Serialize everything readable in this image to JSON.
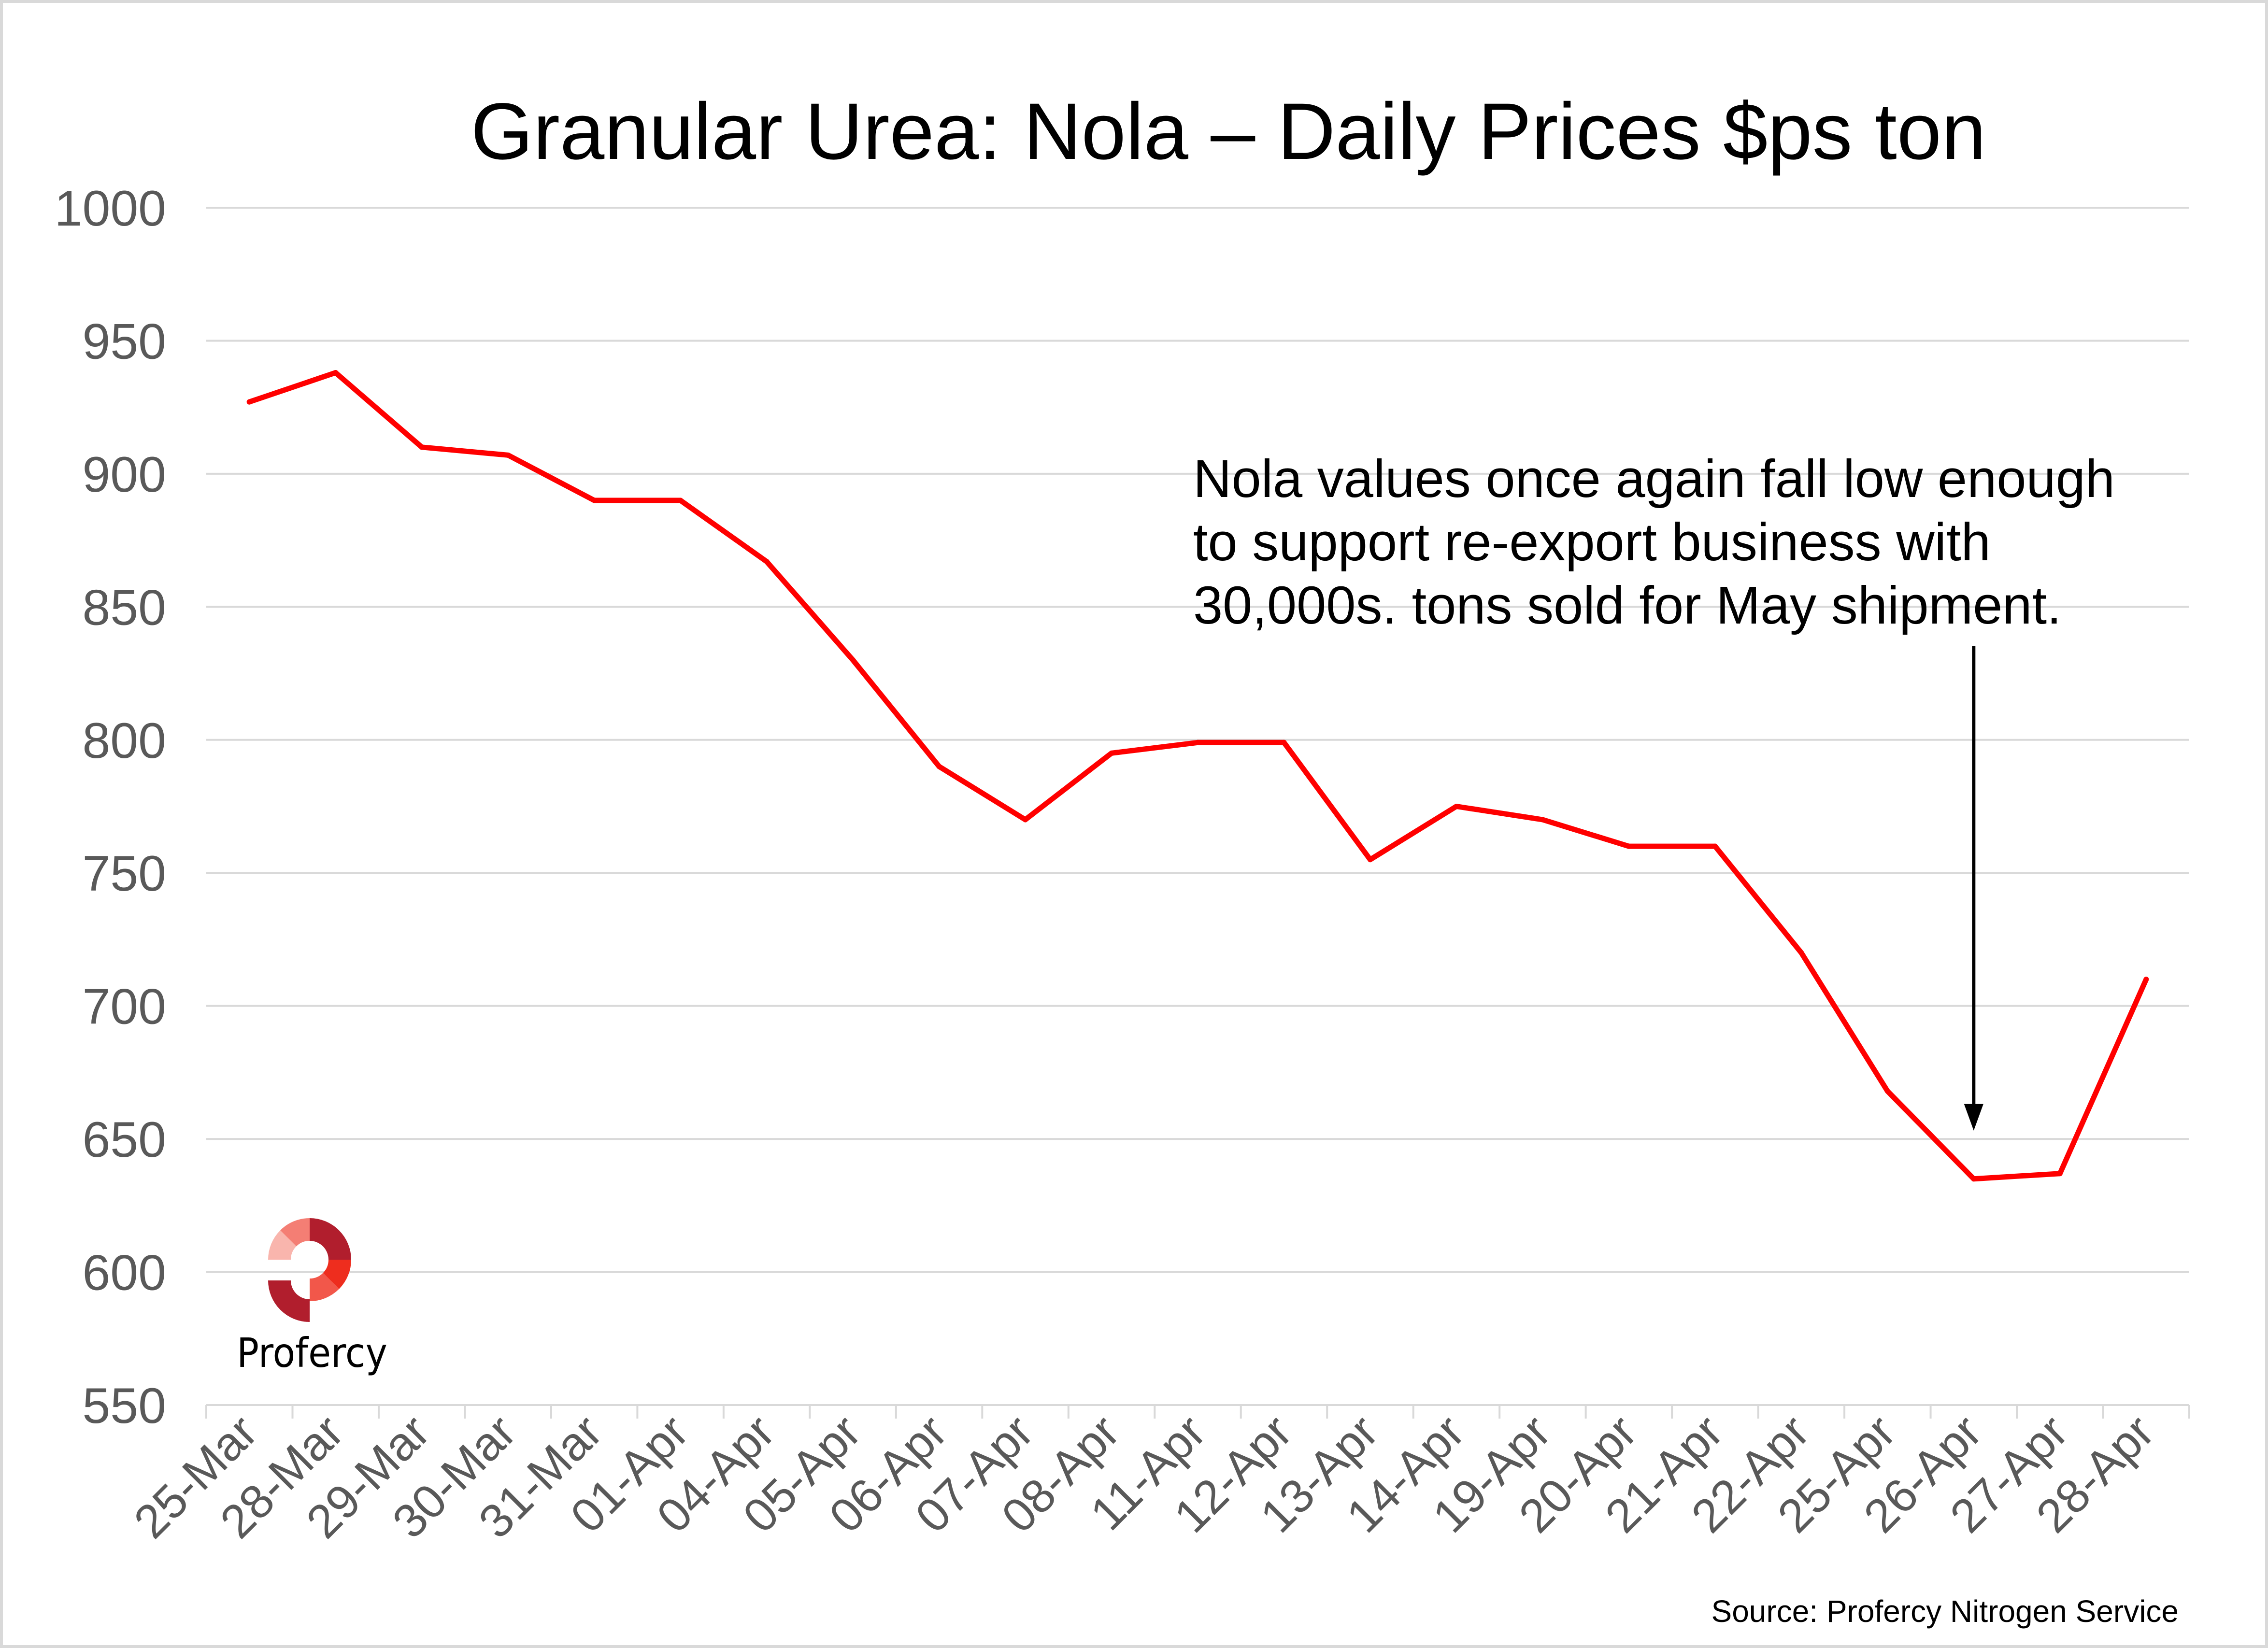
{
  "chart_data": {
    "type": "line",
    "title": "Granular Urea: Nola – Daily Prices $ps ton",
    "xlabel": "",
    "ylabel": "",
    "ylim": [
      550,
      1000
    ],
    "yticks": [
      1000,
      950,
      900,
      850,
      800,
      750,
      700,
      650,
      600,
      550
    ],
    "ytick_labels": [
      "1000",
      "950",
      "900",
      "850",
      "800",
      "750",
      "700",
      "650",
      "600",
      "550"
    ],
    "grid": true,
    "legend": "none",
    "categories": [
      "25-Mar",
      "28-Mar",
      "29-Mar",
      "30-Mar",
      "31-Mar",
      "01-Apr",
      "04-Apr",
      "05-Apr",
      "06-Apr",
      "07-Apr",
      "08-Apr",
      "11-Apr",
      "12-Apr",
      "13-Apr",
      "14-Apr",
      "19-Apr",
      "20-Apr",
      "21-Apr",
      "22-Apr",
      "25-Apr",
      "26-Apr",
      "27-Apr",
      "28-Apr"
    ],
    "series": [
      {
        "name": "Granular Urea Nola",
        "color": "#ff0000",
        "values": [
          927,
          938,
          910,
          907,
          890,
          890,
          867,
          830,
          790,
          770,
          795,
          799,
          799,
          755,
          775,
          770,
          760,
          760,
          720,
          668,
          635,
          637,
          710
        ]
      }
    ],
    "annotation": {
      "lines": [
        "Nola values once again fall low enough",
        "to support re-export business with",
        "30,000s. tons sold for May shipment."
      ],
      "points_to": "26-Apr"
    },
    "source": "Source: Profercy Nitrogen Service"
  },
  "logo": {
    "wordmark": "Profercy",
    "colors": {
      "dark": "#b11e2d",
      "bright": "#ee2d1e",
      "salmon": "#f2574a",
      "pink": "#f47e74",
      "light": "#f9b5ad"
    }
  },
  "colors": {
    "grid": "#d9d9d9",
    "axis_text": "#595959",
    "line": "#ff0000",
    "arrow": "#000000"
  }
}
